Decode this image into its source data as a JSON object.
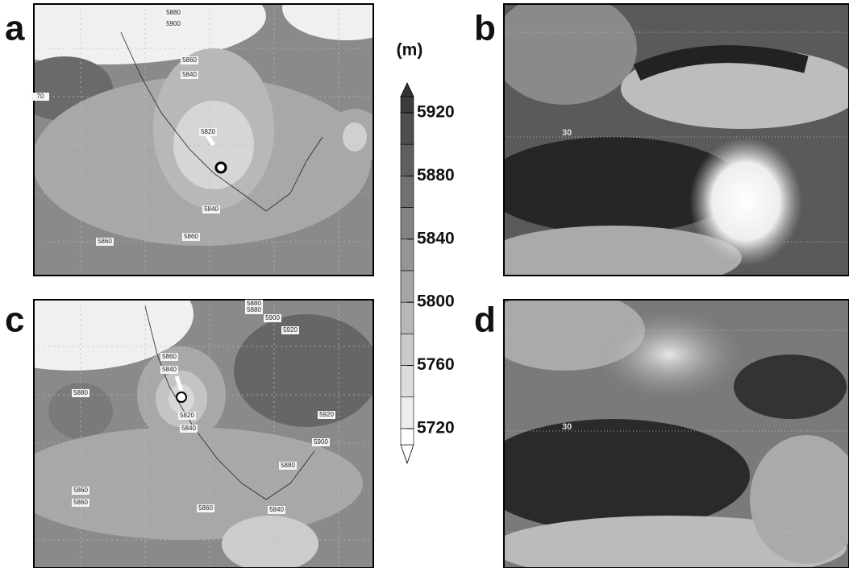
{
  "panel_a": {
    "label": "a",
    "contour_labels": [
      "5880",
      "5900",
      "5860",
      "5840",
      "5820",
      "5840",
      "5860",
      "5860",
      "70"
    ]
  },
  "panel_b": {
    "label": "b",
    "latitude_label": "30"
  },
  "panel_c": {
    "label": "c",
    "contour_labels": [
      "5880",
      "5880",
      "5900",
      "5920",
      "5860",
      "5840",
      "5880",
      "5820",
      "5840",
      "5920",
      "5900",
      "5880",
      "5860",
      "5860",
      "5860",
      "5840"
    ]
  },
  "panel_d": {
    "label": "d",
    "latitude_label": "30"
  },
  "colorbar": {
    "unit": "(m)",
    "ticks": [
      5920,
      5880,
      5840,
      5800,
      5760,
      5720
    ]
  }
}
